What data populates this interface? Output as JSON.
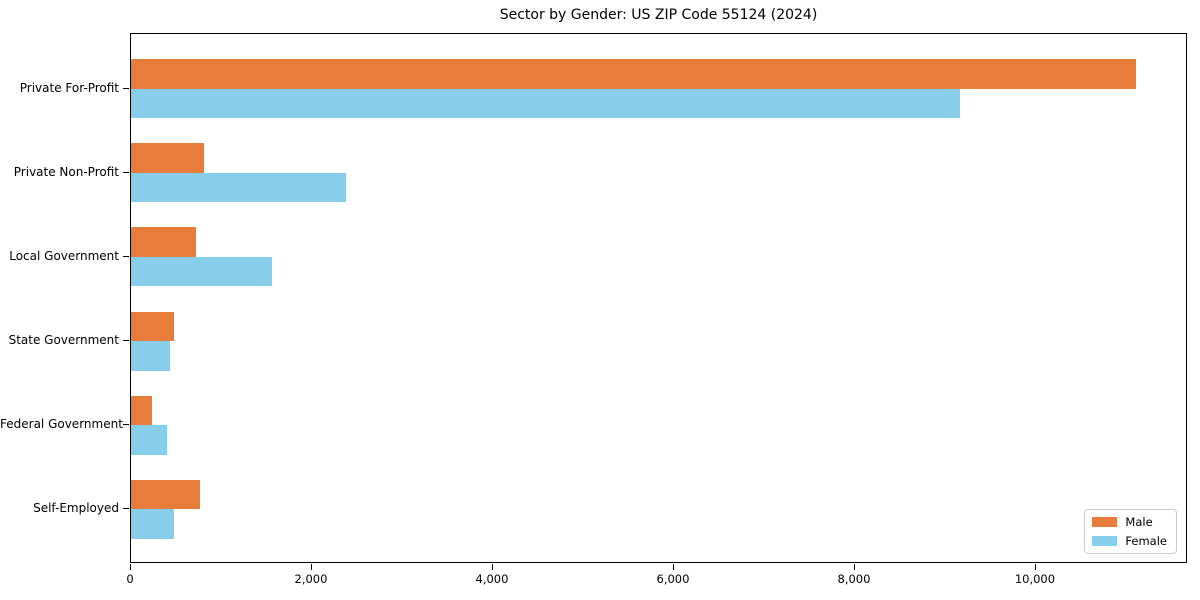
{
  "chart_data": {
    "type": "bar",
    "orientation": "horizontal",
    "title": "Sector by Gender: US ZIP Code 55124 (2024)",
    "xlabel": "",
    "ylabel": "",
    "categories": [
      "Private For-Profit",
      "Private Non-Profit",
      "Local Government",
      "State Government",
      "Federal Government",
      "Self-Employed"
    ],
    "series": [
      {
        "name": "Male",
        "color": "#e87d3b",
        "values": [
          11100,
          810,
          720,
          480,
          235,
          765
        ]
      },
      {
        "name": "Female",
        "color": "#87ceeb",
        "values": [
          9160,
          2380,
          1560,
          435,
          400,
          480
        ]
      }
    ],
    "xlim": [
      0,
      11680
    ],
    "xticks": {
      "values": [
        0,
        2000,
        4000,
        6000,
        8000,
        10000
      ],
      "labels": [
        "0",
        "2,000",
        "4,000",
        "6,000",
        "8,000",
        "10,000"
      ]
    },
    "grid": false,
    "legend": {
      "position": "lower right",
      "entries": [
        "Male",
        "Female"
      ]
    }
  }
}
